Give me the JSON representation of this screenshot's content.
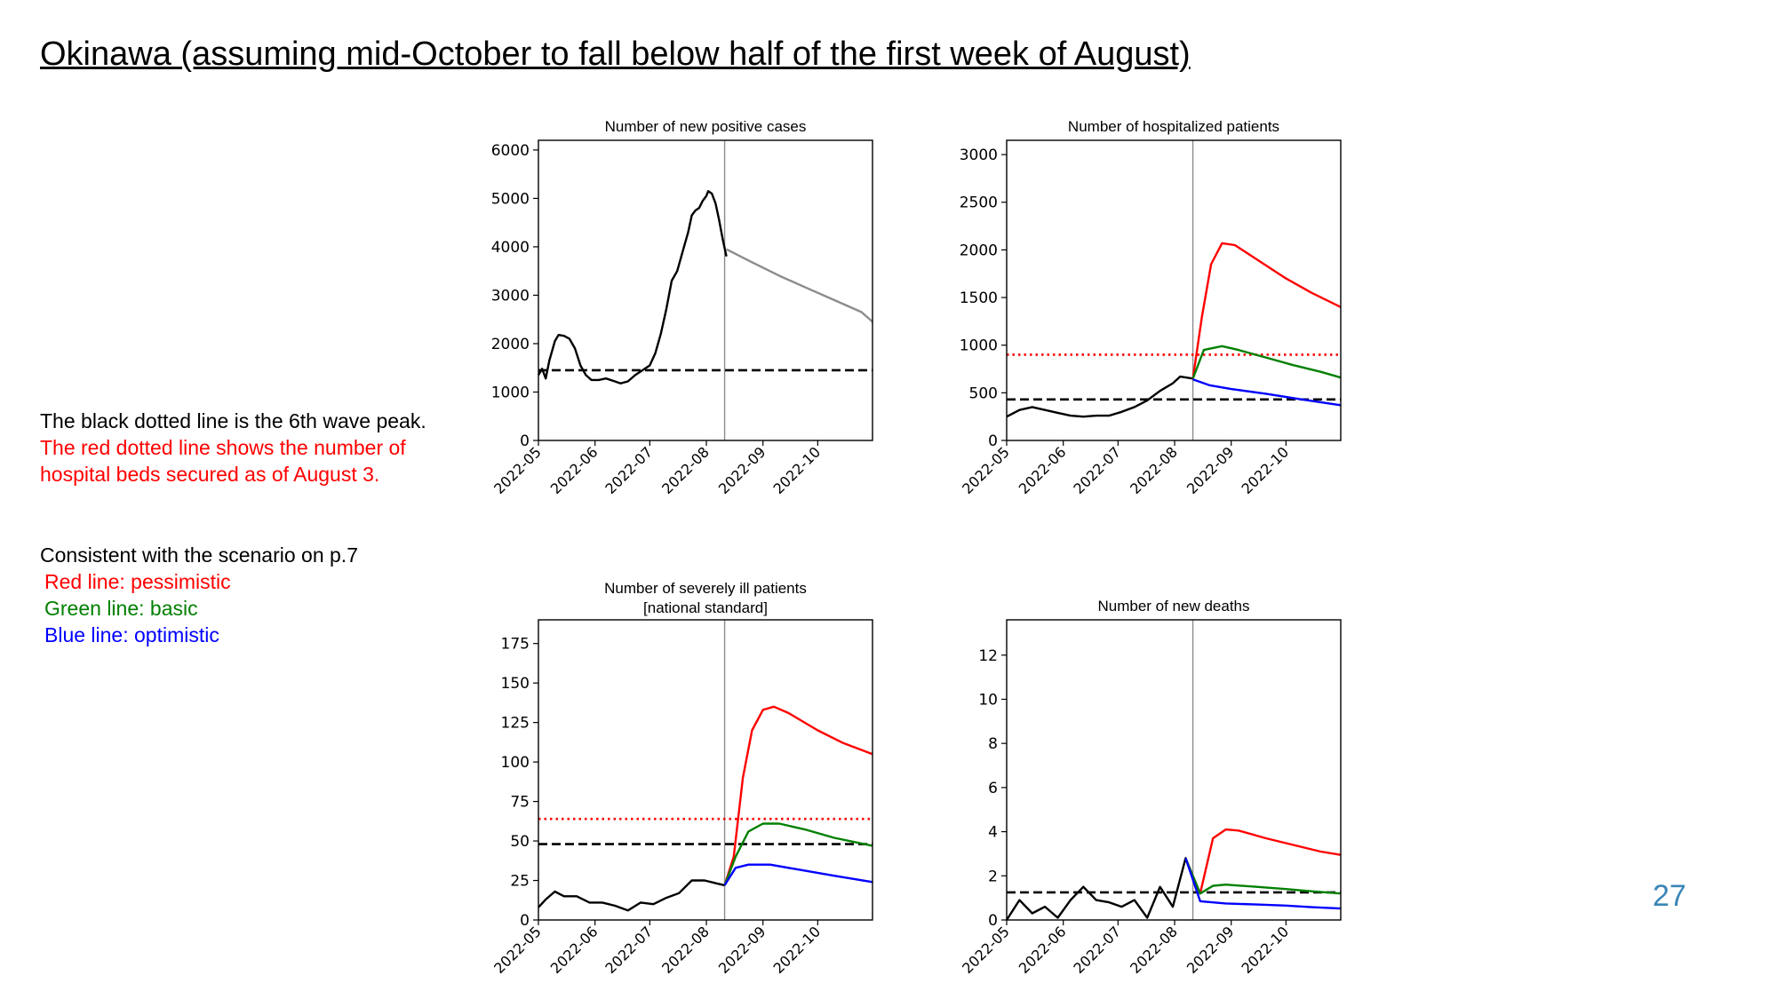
{
  "slide": {
    "title": "Okinawa (assuming mid-October to fall below half of the first week of August)",
    "note_black_line": "The black dotted line is the 6th wave peak.",
    "note_red_line_1": "The red dotted line shows the number of",
    "note_red_line_2": "hospital beds secured as of August 3.",
    "scenario_header": "Consistent with the scenario on p.7",
    "scenario_red": "Red line: pessimistic",
    "scenario_green": "Green line: basic",
    "scenario_blue": "Blue line: optimistic",
    "page_number": "27"
  },
  "colors": {
    "observed": "#000000",
    "projection_single": "#8c8c8c",
    "pessimistic": "#ff0000",
    "basic": "#008000",
    "optimistic": "#0000ff",
    "page_number": "#3a86b8"
  },
  "chart_data": [
    {
      "type": "line",
      "title": "Number of new positive cases",
      "x_ticks": [
        "2022-05",
        "2022-06",
        "2022-07",
        "2022-08",
        "2022-09",
        "2022-10"
      ],
      "xlim": [
        "2022-05-01",
        "2022-10-31"
      ],
      "ylim": [
        0,
        6200
      ],
      "y_ticks": [
        0,
        1000,
        2000,
        3000,
        4000,
        5000,
        6000
      ],
      "vline_date": "2022-08-11",
      "hlines": [
        {
          "y": 1450,
          "style": "dashed",
          "color": "#000000"
        }
      ],
      "series": [
        {
          "color": "#000000",
          "points": [
            [
              "2022-05-01",
              1350
            ],
            [
              "2022-05-03",
              1480
            ],
            [
              "2022-05-05",
              1280
            ],
            [
              "2022-05-07",
              1650
            ],
            [
              "2022-05-10",
              2050
            ],
            [
              "2022-05-12",
              2180
            ],
            [
              "2022-05-15",
              2160
            ],
            [
              "2022-05-18",
              2100
            ],
            [
              "2022-05-21",
              1900
            ],
            [
              "2022-05-24",
              1550
            ],
            [
              "2022-05-27",
              1350
            ],
            [
              "2022-05-30",
              1250
            ],
            [
              "2022-06-03",
              1250
            ],
            [
              "2022-06-07",
              1280
            ],
            [
              "2022-06-11",
              1230
            ],
            [
              "2022-06-15",
              1180
            ],
            [
              "2022-06-19",
              1220
            ],
            [
              "2022-06-23",
              1350
            ],
            [
              "2022-06-27",
              1450
            ],
            [
              "2022-07-01",
              1550
            ],
            [
              "2022-07-04",
              1800
            ],
            [
              "2022-07-07",
              2200
            ],
            [
              "2022-07-10",
              2700
            ],
            [
              "2022-07-13",
              3300
            ],
            [
              "2022-07-16",
              3500
            ],
            [
              "2022-07-19",
              3900
            ],
            [
              "2022-07-22",
              4300
            ],
            [
              "2022-07-24",
              4650
            ],
            [
              "2022-07-26",
              4750
            ],
            [
              "2022-07-28",
              4800
            ],
            [
              "2022-07-30",
              4950
            ],
            [
              "2022-08-01",
              5050
            ],
            [
              "2022-08-02",
              5150
            ],
            [
              "2022-08-04",
              5100
            ],
            [
              "2022-08-06",
              4900
            ],
            [
              "2022-08-08",
              4550
            ],
            [
              "2022-08-10",
              4150
            ],
            [
              "2022-08-12",
              3800
            ]
          ]
        },
        {
          "color": "#8c8c8c",
          "points": [
            [
              "2022-08-12",
              3950
            ],
            [
              "2022-08-25",
              3700
            ],
            [
              "2022-09-10",
              3400
            ],
            [
              "2022-09-25",
              3150
            ],
            [
              "2022-10-10",
              2900
            ],
            [
              "2022-10-25",
              2650
            ],
            [
              "2022-10-31",
              2450
            ]
          ]
        }
      ]
    },
    {
      "type": "line",
      "title": "Number of hospitalized patients",
      "x_ticks": [
        "2022-05",
        "2022-06",
        "2022-07",
        "2022-08",
        "2022-09",
        "2022-10"
      ],
      "xlim": [
        "2022-05-01",
        "2022-10-31"
      ],
      "ylim": [
        0,
        3150
      ],
      "y_ticks": [
        0,
        500,
        1000,
        1500,
        2000,
        2500,
        3000
      ],
      "vline_date": "2022-08-11",
      "hlines": [
        {
          "y": 900,
          "style": "dotted",
          "color": "#ff0000"
        },
        {
          "y": 430,
          "style": "dashed",
          "color": "#000000"
        }
      ],
      "series": [
        {
          "color": "#000000",
          "points": [
            [
              "2022-05-01",
              250
            ],
            [
              "2022-05-08",
              320
            ],
            [
              "2022-05-15",
              350
            ],
            [
              "2022-05-22",
              320
            ],
            [
              "2022-05-29",
              290
            ],
            [
              "2022-06-05",
              260
            ],
            [
              "2022-06-12",
              250
            ],
            [
              "2022-06-19",
              260
            ],
            [
              "2022-06-26",
              260
            ],
            [
              "2022-07-03",
              300
            ],
            [
              "2022-07-10",
              350
            ],
            [
              "2022-07-17",
              420
            ],
            [
              "2022-07-24",
              520
            ],
            [
              "2022-07-31",
              600
            ],
            [
              "2022-08-04",
              670
            ],
            [
              "2022-08-11",
              650
            ]
          ]
        },
        {
          "color": "#ff0000",
          "points": [
            [
              "2022-08-11",
              650
            ],
            [
              "2022-08-16",
              1300
            ],
            [
              "2022-08-21",
              1850
            ],
            [
              "2022-08-27",
              2070
            ],
            [
              "2022-09-03",
              2050
            ],
            [
              "2022-09-15",
              1900
            ],
            [
              "2022-10-01",
              1700
            ],
            [
              "2022-10-15",
              1550
            ],
            [
              "2022-10-31",
              1400
            ]
          ]
        },
        {
          "color": "#008000",
          "points": [
            [
              "2022-08-11",
              650
            ],
            [
              "2022-08-17",
              950
            ],
            [
              "2022-08-27",
              990
            ],
            [
              "2022-09-05",
              950
            ],
            [
              "2022-09-20",
              870
            ],
            [
              "2022-10-05",
              790
            ],
            [
              "2022-10-20",
              720
            ],
            [
              "2022-10-31",
              660
            ]
          ]
        },
        {
          "color": "#0000ff",
          "points": [
            [
              "2022-08-11",
              640
            ],
            [
              "2022-08-20",
              580
            ],
            [
              "2022-09-01",
              540
            ],
            [
              "2022-09-20",
              490
            ],
            [
              "2022-10-10",
              430
            ],
            [
              "2022-10-31",
              370
            ]
          ]
        }
      ]
    },
    {
      "type": "line",
      "title": "Number of severely ill patients",
      "subtitle": "[national standard]",
      "x_ticks": [
        "2022-05",
        "2022-06",
        "2022-07",
        "2022-08",
        "2022-09",
        "2022-10"
      ],
      "xlim": [
        "2022-05-01",
        "2022-10-31"
      ],
      "ylim": [
        0,
        190
      ],
      "y_ticks": [
        0,
        25,
        50,
        75,
        100,
        125,
        150,
        175
      ],
      "vline_date": "2022-08-11",
      "hlines": [
        {
          "y": 64,
          "style": "dotted",
          "color": "#ff0000"
        },
        {
          "y": 48,
          "style": "dashed",
          "color": "#000000"
        }
      ],
      "series": [
        {
          "color": "#000000",
          "points": [
            [
              "2022-05-01",
              8
            ],
            [
              "2022-05-05",
              13
            ],
            [
              "2022-05-10",
              18
            ],
            [
              "2022-05-15",
              15
            ],
            [
              "2022-05-22",
              15
            ],
            [
              "2022-05-29",
              11
            ],
            [
              "2022-06-05",
              11
            ],
            [
              "2022-06-12",
              9
            ],
            [
              "2022-06-19",
              6
            ],
            [
              "2022-06-26",
              11
            ],
            [
              "2022-07-03",
              10
            ],
            [
              "2022-07-10",
              14
            ],
            [
              "2022-07-17",
              17
            ],
            [
              "2022-07-24",
              25
            ],
            [
              "2022-07-31",
              25
            ],
            [
              "2022-08-07",
              23
            ],
            [
              "2022-08-11",
              22
            ]
          ]
        },
        {
          "color": "#ff0000",
          "points": [
            [
              "2022-08-11",
              22
            ],
            [
              "2022-08-16",
              40
            ],
            [
              "2022-08-21",
              90
            ],
            [
              "2022-08-26",
              120
            ],
            [
              "2022-09-01",
              133
            ],
            [
              "2022-09-07",
              135
            ],
            [
              "2022-09-15",
              131
            ],
            [
              "2022-10-01",
              120
            ],
            [
              "2022-10-15",
              112
            ],
            [
              "2022-10-31",
              105
            ]
          ]
        },
        {
          "color": "#008000",
          "points": [
            [
              "2022-08-11",
              22
            ],
            [
              "2022-08-17",
              40
            ],
            [
              "2022-08-24",
              56
            ],
            [
              "2022-09-01",
              61
            ],
            [
              "2022-09-10",
              61
            ],
            [
              "2022-09-25",
              57
            ],
            [
              "2022-10-10",
              52
            ],
            [
              "2022-10-31",
              47
            ]
          ]
        },
        {
          "color": "#0000ff",
          "points": [
            [
              "2022-08-11",
              22
            ],
            [
              "2022-08-17",
              33
            ],
            [
              "2022-08-24",
              35
            ],
            [
              "2022-09-05",
              35
            ],
            [
              "2022-09-20",
              32
            ],
            [
              "2022-10-10",
              28
            ],
            [
              "2022-10-31",
              24
            ]
          ]
        }
      ]
    },
    {
      "type": "line",
      "title": "Number of new deaths",
      "x_ticks": [
        "2022-05",
        "2022-06",
        "2022-07",
        "2022-08",
        "2022-09",
        "2022-10"
      ],
      "xlim": [
        "2022-05-01",
        "2022-10-31"
      ],
      "ylim": [
        0,
        13.6
      ],
      "y_ticks": [
        0,
        2,
        4,
        6,
        8,
        10,
        12
      ],
      "vline_date": "2022-08-11",
      "hlines": [
        {
          "y": 1.25,
          "style": "dashed",
          "color": "#000000"
        }
      ],
      "series": [
        {
          "color": "#000000",
          "points": [
            [
              "2022-05-01",
              0
            ],
            [
              "2022-05-08",
              0.9
            ],
            [
              "2022-05-15",
              0.3
            ],
            [
              "2022-05-22",
              0.6
            ],
            [
              "2022-05-29",
              0.1
            ],
            [
              "2022-06-05",
              0.9
            ],
            [
              "2022-06-12",
              1.5
            ],
            [
              "2022-06-19",
              0.9
            ],
            [
              "2022-06-26",
              0.8
            ],
            [
              "2022-07-03",
              0.6
            ],
            [
              "2022-07-10",
              0.9
            ],
            [
              "2022-07-17",
              0.1
            ],
            [
              "2022-07-24",
              1.5
            ],
            [
              "2022-07-31",
              0.6
            ],
            [
              "2022-08-07",
              2.8
            ],
            [
              "2022-08-11",
              1.9
            ]
          ]
        },
        {
          "color": "#ff0000",
          "points": [
            [
              "2022-08-07",
              2.8
            ],
            [
              "2022-08-15",
              1.2
            ],
            [
              "2022-08-22",
              3.7
            ],
            [
              "2022-08-29",
              4.1
            ],
            [
              "2022-09-05",
              4.05
            ],
            [
              "2022-09-20",
              3.7
            ],
            [
              "2022-10-05",
              3.4
            ],
            [
              "2022-10-20",
              3.1
            ],
            [
              "2022-10-31",
              2.95
            ]
          ]
        },
        {
          "color": "#008000",
          "points": [
            [
              "2022-08-07",
              2.8
            ],
            [
              "2022-08-15",
              1.2
            ],
            [
              "2022-08-22",
              1.55
            ],
            [
              "2022-08-29",
              1.6
            ],
            [
              "2022-09-15",
              1.5
            ],
            [
              "2022-10-01",
              1.4
            ],
            [
              "2022-10-15",
              1.3
            ],
            [
              "2022-10-31",
              1.2
            ]
          ]
        },
        {
          "color": "#0000ff",
          "points": [
            [
              "2022-08-07",
              2.8
            ],
            [
              "2022-08-15",
              0.85
            ],
            [
              "2022-08-29",
              0.75
            ],
            [
              "2022-09-15",
              0.7
            ],
            [
              "2022-10-01",
              0.65
            ],
            [
              "2022-10-15",
              0.58
            ],
            [
              "2022-10-31",
              0.52
            ]
          ]
        }
      ]
    }
  ]
}
